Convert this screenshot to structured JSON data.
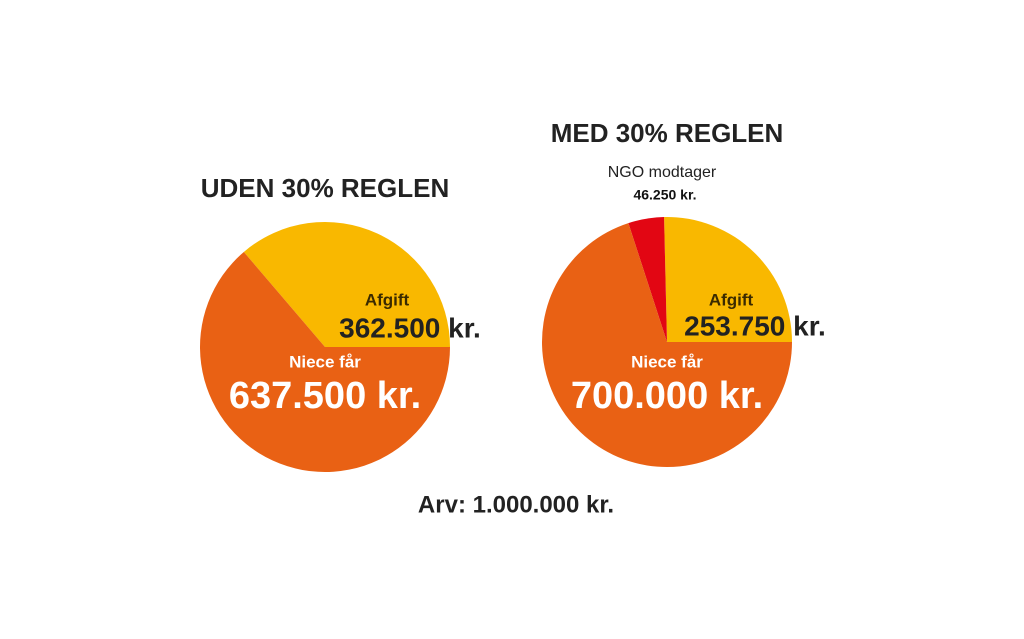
{
  "chart_data": [
    {
      "type": "pie",
      "title": "UDEN 30% REGLEN",
      "categories": [
        "Afgift",
        "Niece får"
      ],
      "values": [
        362500,
        637500
      ],
      "value_labels": [
        "362.500 kr.",
        "637.500 kr."
      ],
      "colors": [
        "#f9b800",
        "#e96114"
      ]
    },
    {
      "type": "pie",
      "title": "MED 30% REGLEN",
      "categories": [
        "Afgift",
        "NGO modtager",
        "Niece får"
      ],
      "values": [
        253750,
        46250,
        700000
      ],
      "value_labels": [
        "253.750 kr.",
        "46.250 kr.",
        "700.000 kr."
      ],
      "colors": [
        "#f9b800",
        "#e20613",
        "#e96114"
      ]
    }
  ],
  "note": "Arv: 1.000.000 kr."
}
